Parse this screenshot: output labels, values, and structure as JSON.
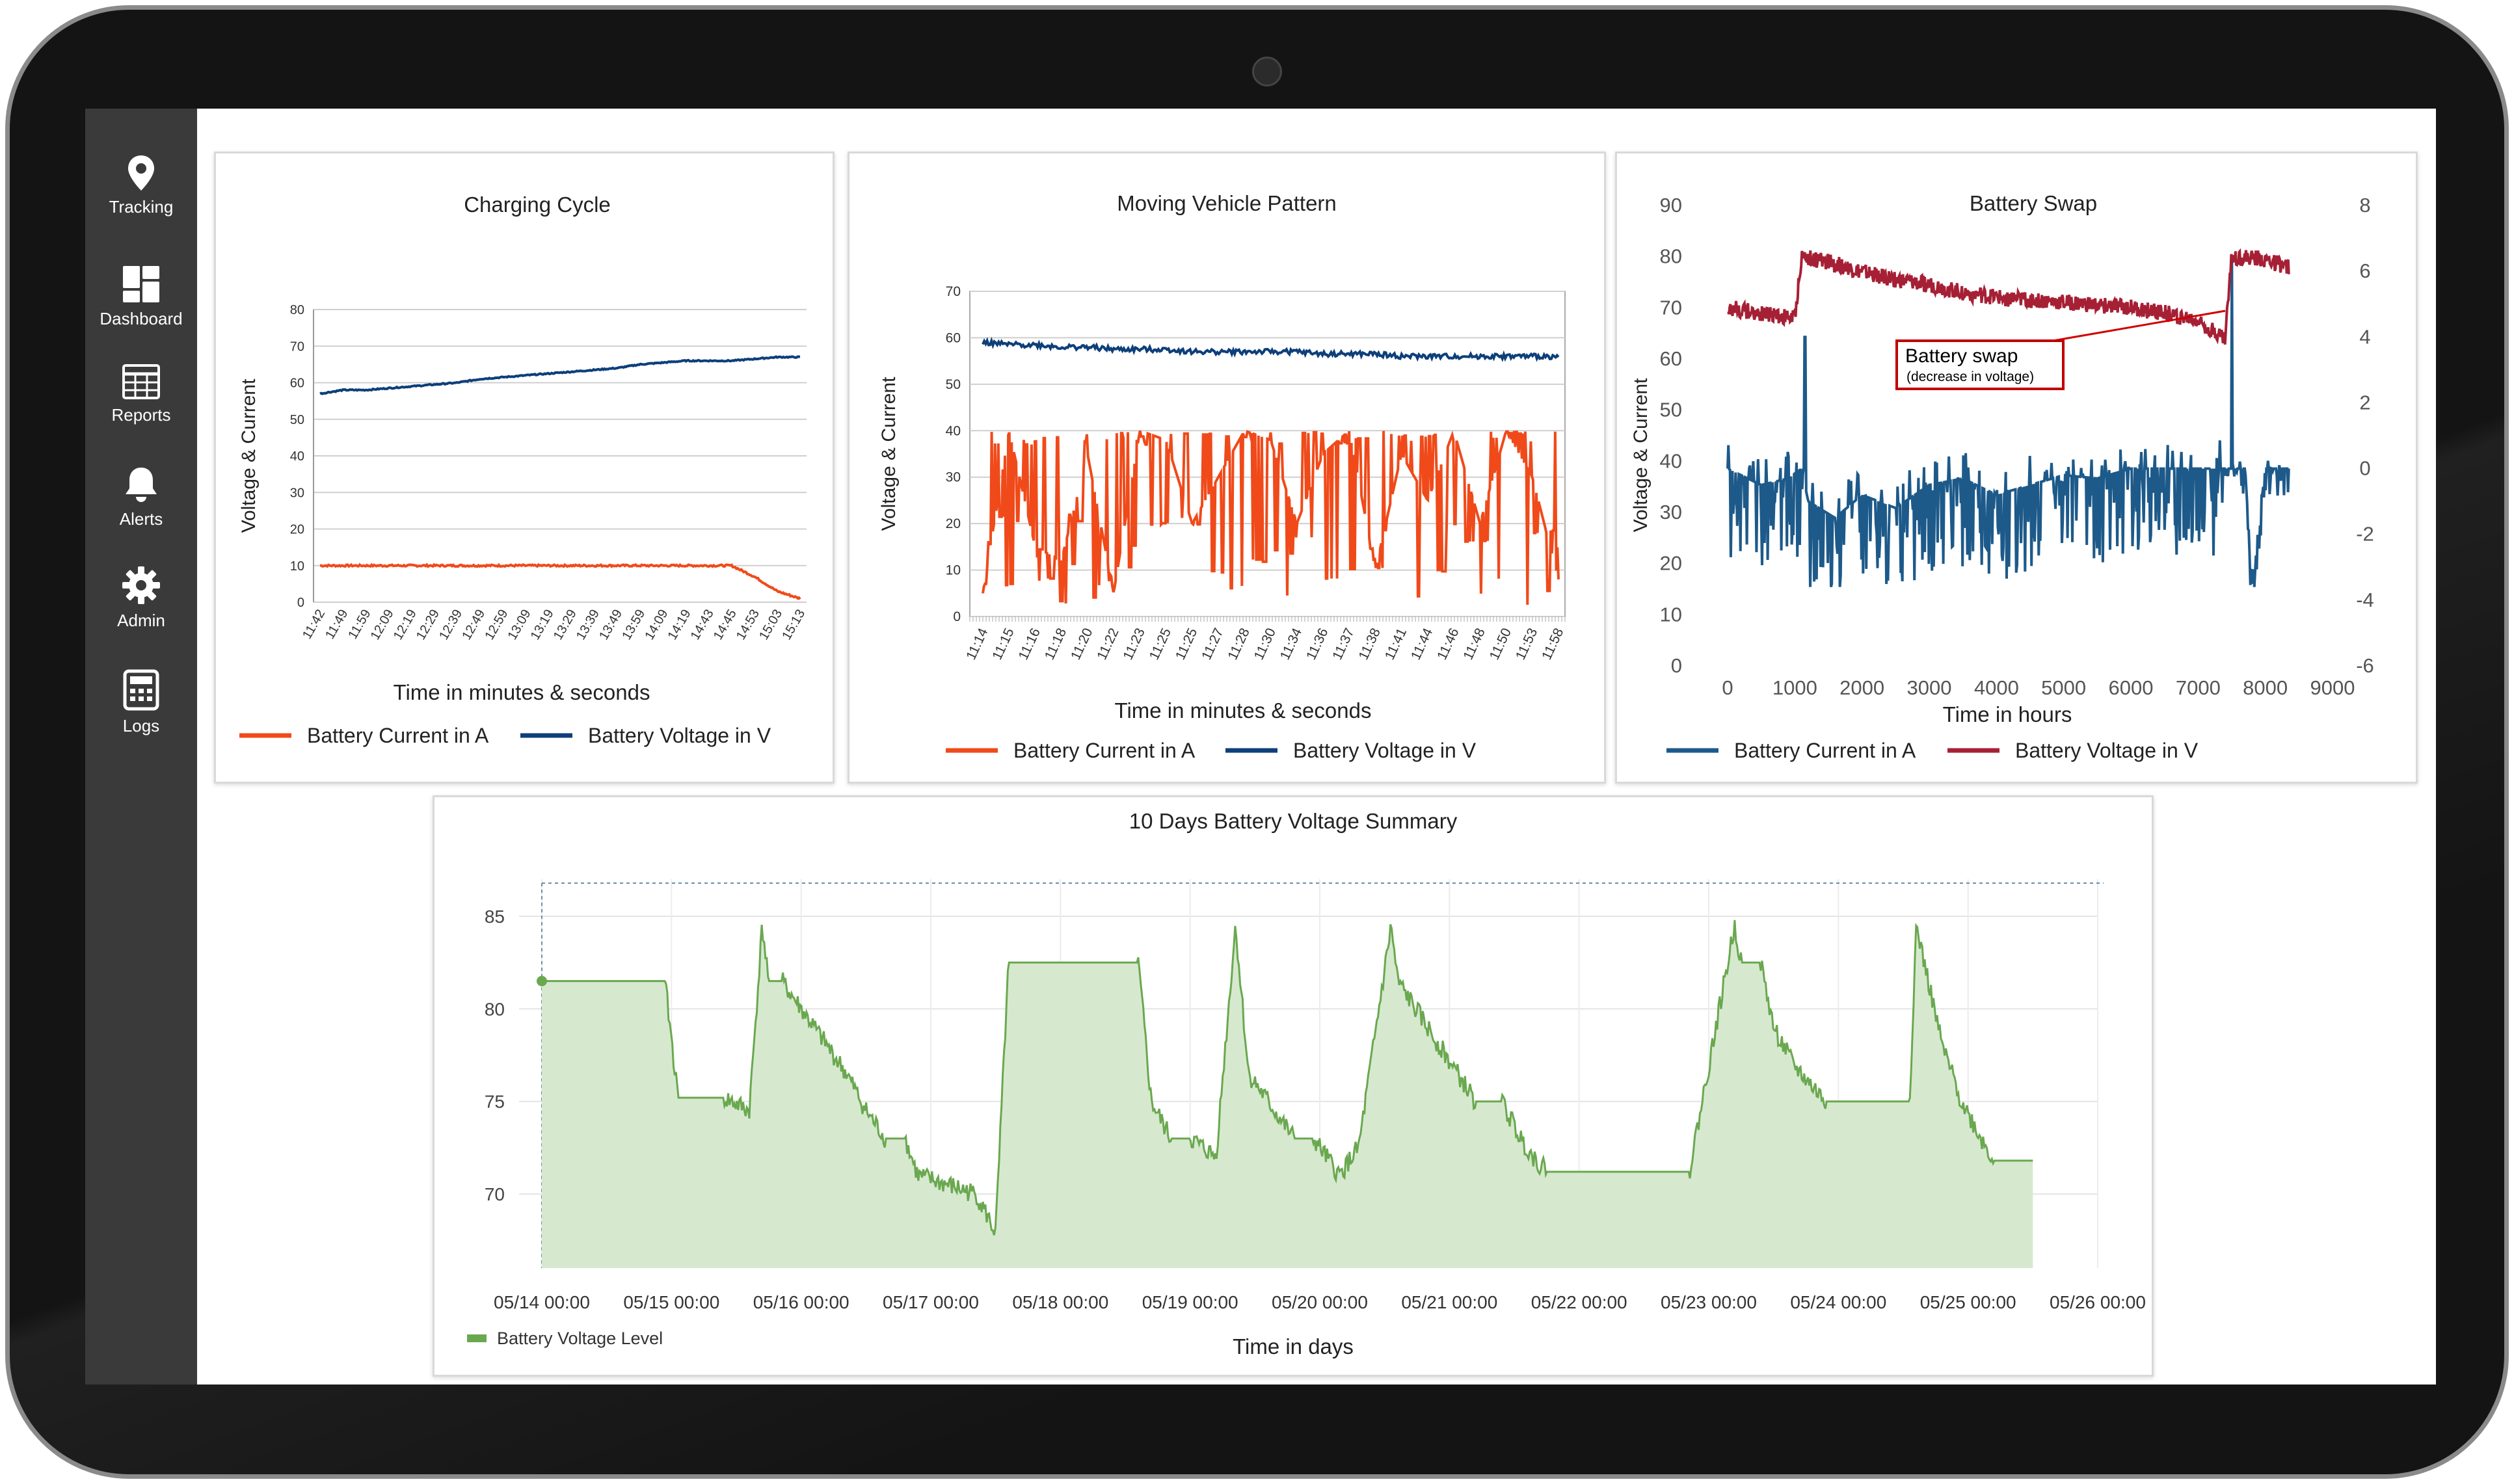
{
  "sidebar": {
    "items": [
      {
        "label": "Tracking",
        "icon": "map-pin-icon"
      },
      {
        "label": "Dashboard",
        "icon": "dashboard-grid-icon"
      },
      {
        "label": "Reports",
        "icon": "table-icon"
      },
      {
        "label": "Alerts",
        "icon": "bell-icon"
      },
      {
        "label": "Admin",
        "icon": "gear-icon"
      },
      {
        "label": "Logs",
        "icon": "calculator-icon"
      }
    ]
  },
  "colors": {
    "current_orange": "#f04a1a",
    "voltage_blue": "#0d3f7a",
    "swap_blue": "#1d5a8a",
    "swap_red": "#a62035",
    "summary_green": "#6aa84f",
    "summary_fill": "#d6e9cf"
  },
  "chart_data": [
    {
      "id": "charging",
      "type": "line",
      "title": "Charging Cycle",
      "xlabel": "Time in minutes & seconds",
      "ylabel": "Voltage & Current",
      "ylim": [
        0,
        80
      ],
      "yticks": [
        "0",
        "10",
        "20",
        "30",
        "40",
        "50",
        "60",
        "70",
        "80"
      ],
      "categories": [
        "11:42",
        "11:49",
        "11:59",
        "12:09",
        "12:19",
        "12:29",
        "12:39",
        "12:49",
        "12:59",
        "13:09",
        "13:19",
        "13:29",
        "13:39",
        "13:49",
        "13:59",
        "14:09",
        "14:19",
        "14:43",
        "14:45",
        "14:53",
        "15:03",
        "15:13"
      ],
      "series": [
        {
          "name": "Battery Current in A",
          "values": [
            10,
            10,
            10,
            10,
            10,
            10,
            10,
            10,
            10,
            10,
            10,
            10,
            10,
            10,
            10,
            10,
            10,
            10,
            10,
            7,
            3,
            1
          ]
        },
        {
          "name": "Battery Voltage in V",
          "values": [
            57,
            58,
            58,
            58.5,
            59,
            59.5,
            60,
            61,
            61.5,
            62,
            62.5,
            63,
            63.5,
            64,
            65,
            65.5,
            66,
            66,
            66,
            66.5,
            67,
            67
          ]
        }
      ],
      "grid": true,
      "legend": "bottom"
    },
    {
      "id": "moving",
      "type": "line",
      "title": "Moving Vehicle Pattern",
      "xlabel": "Time in minutes & seconds",
      "ylabel": "Voltage & Current",
      "ylim": [
        0,
        70
      ],
      "yticks": [
        "0",
        "10",
        "20",
        "30",
        "40",
        "50",
        "60",
        "70"
      ],
      "categories": [
        "11:14",
        "11:15",
        "11:16",
        "11:18",
        "11:20",
        "11:22",
        "11:23",
        "11:25",
        "11:25",
        "11:27",
        "11:28",
        "11:30",
        "11:34",
        "11:36",
        "11:37",
        "11:38",
        "11:41",
        "11:44",
        "11:46",
        "11:48",
        "11:50",
        "11:53",
        "11:58"
      ],
      "series": [
        {
          "name": "Battery Current in A",
          "values": [
            5,
            40,
            15,
            12,
            35,
            5,
            40,
            38,
            20,
            30,
            40,
            38,
            20,
            35,
            40,
            10,
            35,
            25,
            40,
            20,
            40,
            30,
            8
          ]
        },
        {
          "name": "Battery Voltage in V",
          "values": [
            59,
            58.5,
            58.5,
            58,
            58,
            57.5,
            57.5,
            57.5,
            57,
            57,
            57,
            57,
            57,
            56.5,
            56.5,
            56.5,
            56,
            56,
            56,
            56,
            56,
            56,
            56
          ]
        }
      ],
      "grid": true,
      "legend": "bottom"
    },
    {
      "id": "swap",
      "type": "line",
      "title": "Battery Swap",
      "xlabel": "Time in hours",
      "ylabel": "Voltage & Current",
      "ylim": [
        0,
        90
      ],
      "y2lim": [
        -6,
        8
      ],
      "xlim": [
        0,
        9000
      ],
      "yticks": [
        "0",
        "10",
        "20",
        "30",
        "40",
        "50",
        "60",
        "70",
        "80",
        "90"
      ],
      "y2ticks": [
        "-6",
        "-4",
        "-2",
        "0",
        "2",
        "4",
        "6",
        "8"
      ],
      "xticks": [
        "0",
        "1000",
        "2000",
        "3000",
        "4000",
        "5000",
        "6000",
        "7000",
        "8000",
        "9000"
      ],
      "series": [
        {
          "name": "Battery Current in A",
          "axis": "right",
          "x": [
            0,
            500,
            900,
            1100,
            1200,
            1600,
            2000,
            2500,
            3000,
            3500,
            4000,
            4500,
            5000,
            5500,
            6000,
            7000,
            7400,
            7500,
            7700,
            7800,
            8000,
            8300
          ],
          "values": [
            0,
            -0.5,
            -0.3,
            0,
            -1,
            -1.5,
            -0.8,
            -1.2,
            -0.5,
            -0.3,
            -0.8,
            -0.5,
            -0.2,
            -0.3,
            0,
            0,
            0,
            0,
            0,
            -3.5,
            0,
            0
          ]
        },
        {
          "name": "Battery Voltage in V",
          "axis": "left",
          "x": [
            0,
            500,
            1000,
            1100,
            1500,
            2000,
            2500,
            3000,
            3500,
            4000,
            4500,
            5000,
            5500,
            6000,
            6500,
            7000,
            7300,
            7400,
            7500,
            8000,
            8300
          ],
          "values": [
            70,
            69,
            68,
            80,
            79,
            77,
            75.5,
            74.5,
            73,
            72,
            71.5,
            71,
            70.5,
            70,
            69,
            67.5,
            65,
            64,
            80,
            79.5,
            78
          ]
        }
      ],
      "annotation": {
        "text": "Battery swap",
        "subtext": "(decrease in voltage)"
      },
      "legend": "bottom"
    },
    {
      "id": "summary",
      "type": "area",
      "title": "10 Days Battery Voltage Summary",
      "xlabel": "Time in days",
      "ylabel": "",
      "ylim": [
        66,
        87
      ],
      "yticks": [
        "70",
        "75",
        "80",
        "85"
      ],
      "xlim": [
        0,
        12
      ],
      "xticks": [
        "05/14 00:00",
        "05/15 00:00",
        "05/16 00:00",
        "05/17 00:00",
        "05/18 00:00",
        "05/19 00:00",
        "05/20 00:00",
        "05/21 00:00",
        "05/22 00:00",
        "05/23 00:00",
        "05/24 00:00",
        "05/25 00:00",
        "05/26 00:00"
      ],
      "series": [
        {
          "name": "Battery Voltage Level",
          "x": [
            0,
            0.95,
            1.05,
            1.4,
            1.6,
            1.7,
            1.75,
            1.85,
            2.35,
            2.5,
            2.65,
            2.8,
            2.9,
            3.35,
            3.5,
            3.6,
            3.7,
            3.75,
            4.6,
            4.7,
            4.85,
            5.0,
            5.2,
            5.35,
            5.45,
            5.8,
            5.95,
            6.15,
            6.3,
            6.55,
            6.6,
            7.2,
            7.4,
            7.55,
            7.65,
            7.75,
            8.4,
            8.6,
            8.85,
            9.2,
            9.25,
            9.4,
            9.5,
            9.65,
            9.9,
            10.3,
            10.55,
            10.6,
            10.8,
            10.95,
            11.1,
            11.2,
            11.5
          ],
          "values": [
            81.5,
            81.5,
            75.2,
            75.2,
            74.5,
            84.5,
            81.5,
            81.5,
            76.5,
            74.5,
            73,
            73,
            71,
            70,
            67.9,
            82.5,
            82.5,
            82.5,
            82.5,
            75,
            73,
            73,
            72,
            84.5,
            76.5,
            73,
            73,
            71,
            72.5,
            84.5,
            81.5,
            75,
            75,
            73,
            72,
            71.2,
            71.2,
            71.2,
            71.2,
            84.5,
            82.5,
            82.5,
            79,
            77,
            75,
            75,
            75,
            84.5,
            78,
            75,
            73,
            71.8,
            71.8
          ]
        }
      ],
      "grid": true,
      "legend": "bottom-left"
    }
  ]
}
